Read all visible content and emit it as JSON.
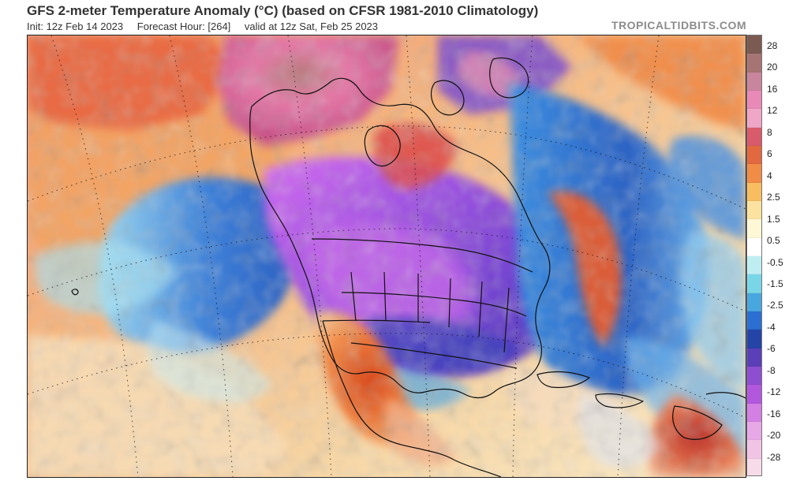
{
  "header": {
    "title": "GFS 2-meter Temperature Anomaly (°C) (based on CFSR 1981-2010 Climatology)",
    "init": "Init: 12z Feb 14 2023",
    "forecast_hour": "Forecast Hour: [264]",
    "valid": "valid at 12z Sat, Feb 25 2023",
    "brand": "TROPICALTIDBITS.COM"
  },
  "legend": {
    "labels": [
      "28",
      "20",
      "16",
      "12",
      "8",
      "6",
      "4",
      "2.5",
      "1.5",
      "0.5",
      "-0.5",
      "-1.5",
      "-2.5",
      "-4",
      "-6",
      "-8",
      "-12",
      "-16",
      "-20",
      "-28"
    ],
    "colors": [
      "#7b5a52",
      "#a67573",
      "#c9859d",
      "#e889b8",
      "#f0a6c7",
      "#d95a6b",
      "#e2683f",
      "#f08c46",
      "#f7bd5e",
      "#fbe2a0",
      "#fff7d6",
      "#ffffff",
      "#bfeef2",
      "#79d6e6",
      "#49a7e0",
      "#2b6fd2",
      "#2544a8",
      "#5a3fb8",
      "#8f4ed1",
      "#b257de",
      "#d37fe3",
      "#e7a8e7",
      "#f1c4e5",
      "#f7dbe8"
    ]
  }
}
